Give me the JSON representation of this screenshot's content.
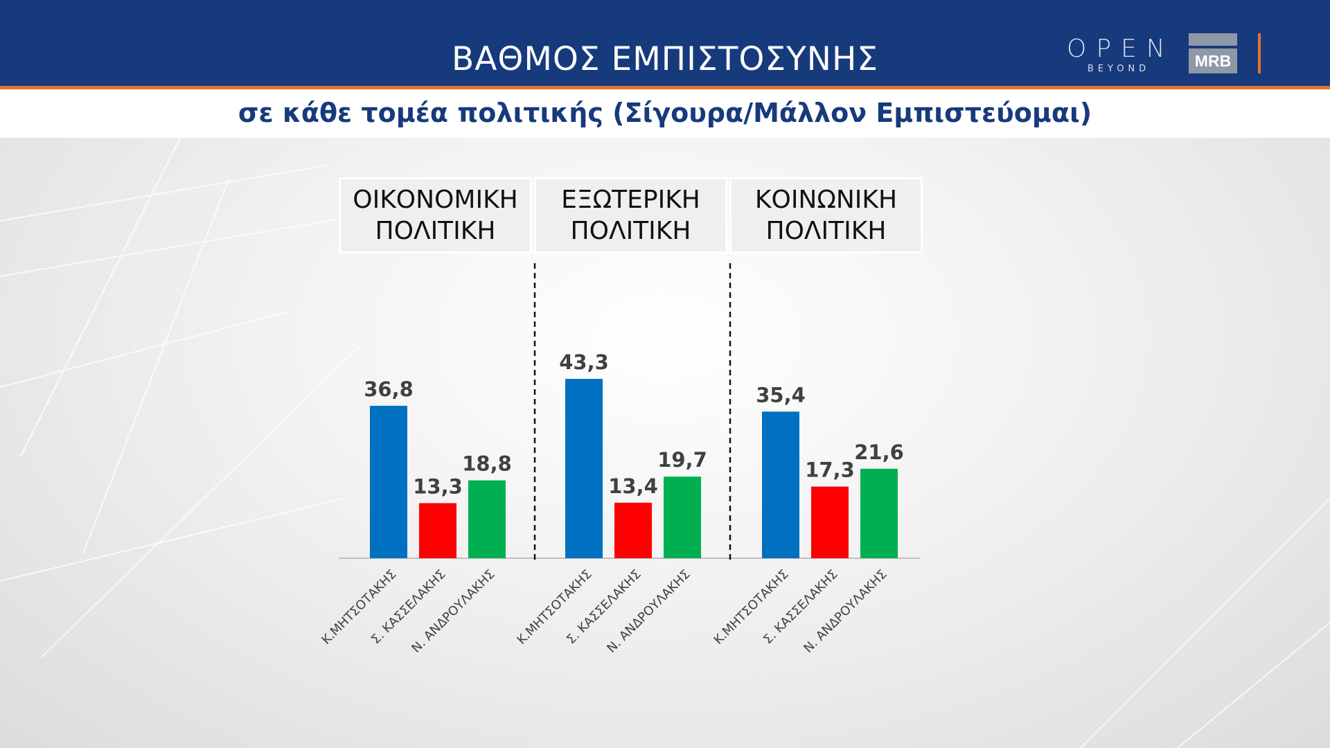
{
  "header": {
    "title": "ΒΑΘΜΟΣ ΕΜΠΙΣΤΟΣΥΝΗΣ",
    "subtitle": "σε κάθε τομέα πολιτικής (Σίγουρα/Μάλλον Εμπιστεύομαι)",
    "logo_open_main": "OPEN",
    "logo_open_sub": "BEYOND",
    "logo_mrb": "MRB"
  },
  "colors": {
    "header_bg": "#173a7c",
    "accent_orange": "#e8702a",
    "bar_blue": "#0070c0",
    "bar_red": "#ff0000",
    "bar_green": "#00b050"
  },
  "chart_data": {
    "type": "bar",
    "title": "ΒΑΘΜΟΣ ΕΜΠΙΣΤΟΣΥΝΗΣ",
    "subtitle": "σε κάθε τομέα πολιτικής (Σίγουρα/Μάλλον Εμπιστεύομαι)",
    "groups": [
      {
        "label": "ΟΙΚΟΝΟΜΙΚΗ ΠΟΛΙΤΙΚΗ",
        "label_lines": [
          "ΟΙΚΟΝΟΜΙΚΗ",
          "ΠΟΛΙΤΙΚΗ"
        ],
        "categories": [
          "Κ.ΜΗΤΣΟΤΑΚΗΣ",
          "Σ. ΚΑΣΣΕΛΑΚΗΣ",
          "Ν. ΑΝΔΡΟΥΛΑΚΗΣ"
        ],
        "values": [
          36.8,
          13.3,
          18.8
        ],
        "value_labels": [
          "36,8",
          "13,3",
          "18,8"
        ],
        "colors": [
          "#0070c0",
          "#ff0000",
          "#00b050"
        ]
      },
      {
        "label": "ΕΞΩΤΕΡΙΚΗ ΠΟΛΙΤΙΚΗ",
        "label_lines": [
          "ΕΞΩΤΕΡΙΚΗ",
          "ΠΟΛΙΤΙΚΗ"
        ],
        "categories": [
          "Κ.ΜΗΤΣΟΤΑΚΗΣ",
          "Σ. ΚΑΣΣΕΛΑΚΗΣ",
          "Ν. ΑΝΔΡΟΥΛΑΚΗΣ"
        ],
        "values": [
          43.3,
          13.4,
          19.7
        ],
        "value_labels": [
          "43,3",
          "13,4",
          "19,7"
        ],
        "colors": [
          "#0070c0",
          "#ff0000",
          "#00b050"
        ]
      },
      {
        "label": "ΚΟΙΝΩΝΙΚΗ ΠΟΛΙΤΙΚΗ",
        "label_lines": [
          "ΚΟΙΝΩΝΙΚΗ",
          "ΠΟΛΙΤΙΚΗ"
        ],
        "categories": [
          "Κ.ΜΗΤΣΟΤΑΚΗΣ",
          "Σ. ΚΑΣΣΕΛΑΚΗΣ",
          "Ν. ΑΝΔΡΟΥΛΑΚΗΣ"
        ],
        "values": [
          35.4,
          17.3,
          21.6
        ],
        "value_labels": [
          "35,4",
          "17,3",
          "21,6"
        ],
        "colors": [
          "#0070c0",
          "#ff0000",
          "#00b050"
        ]
      }
    ],
    "ylim": [
      0,
      50
    ],
    "grid": false,
    "legend": "none"
  }
}
